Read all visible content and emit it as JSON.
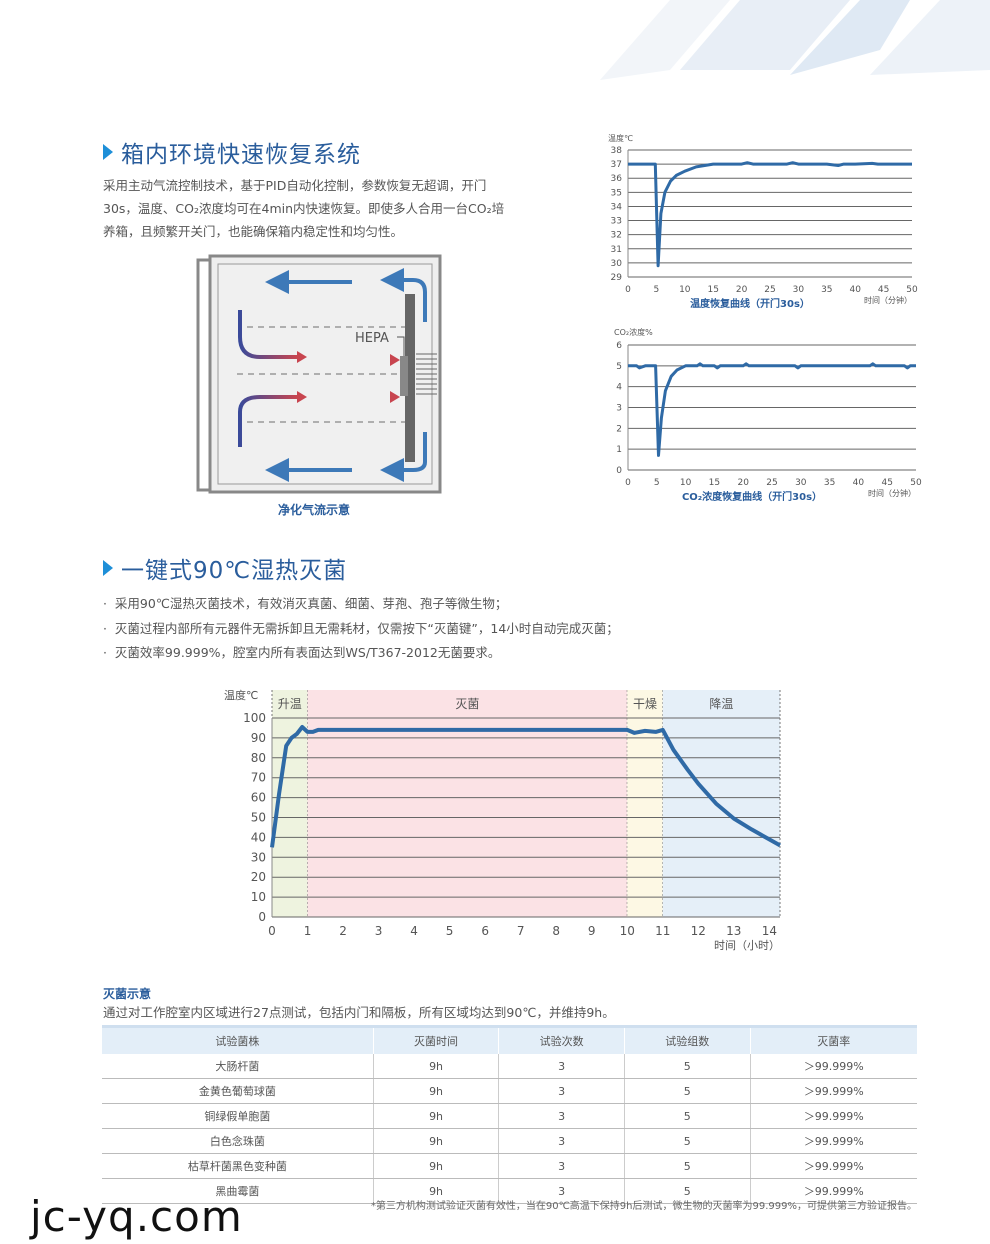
{
  "section1": {
    "title": "箱内环境快速恢复系统",
    "paragraph": [
      "采用主动气流控制技术，基于PID自动化控制，参数恢复无超调，开门",
      "30s，温度、CO₂浓度均可在4min内快速恢复。即使多人合用一台CO₂培",
      "养箱，且频繁开关门，也能确保箱内稳定性和均匀性。"
    ],
    "diagram": {
      "hepa_label": "HEPA",
      "caption": "净化气流示意"
    }
  },
  "section2": {
    "title": "一键式90℃湿热灭菌",
    "bullets": [
      "采用90℃湿热灭菌技术，有效消灭真菌、细菌、芽孢、孢子等微生物；",
      "灭菌过程内部所有元器件无需拆卸且无需耗材，仅需按下“灭菌键”，14小时自动完成灭菌；",
      "灭菌效率99.999%，腔室内所有表面达到WS/T367-2012无菌要求。"
    ]
  },
  "sterilization": {
    "heading": "灭菌示意",
    "description": "通过对工作腔室内区域进行27点测试，包括内门和隔板，所有区域均达到90℃，并维持9h。",
    "table": {
      "headers": [
        "试验菌株",
        "灭菌时间",
        "试验次数",
        "试验组数",
        "灭菌率"
      ],
      "rows": [
        [
          "大肠杆菌",
          "9h",
          "3",
          "5",
          "＞99.999%"
        ],
        [
          "金黄色葡萄球菌",
          "9h",
          "3",
          "5",
          "＞99.999%"
        ],
        [
          "铜绿假单胞菌",
          "9h",
          "3",
          "5",
          "＞99.999%"
        ],
        [
          "白色念珠菌",
          "9h",
          "3",
          "5",
          "＞99.999%"
        ],
        [
          "枯草杆菌黑色变种菌",
          "9h",
          "3",
          "5",
          "＞99.999%"
        ],
        [
          "黑曲霉菌",
          "9h",
          "3",
          "5",
          "＞99.999%"
        ]
      ]
    },
    "footnote": "*第三方机构测试验证灭菌有效性，当在90℃高温下保持9h后测试，微生物的灭菌率为99.999%，可提供第三方验证报告。"
  },
  "watermark": "jc-yq.com",
  "colors": {
    "accent": "#2a5d9c",
    "line": "#2f6aa6",
    "chevron": "#1e8fd8"
  },
  "chart_data": [
    {
      "type": "line",
      "title": "温度恢复曲线（开门30s）",
      "ylabel": "温度℃",
      "xlabel": "时间（分钟）",
      "xlim": [
        0,
        50
      ],
      "ylim": [
        29,
        38
      ],
      "xticks": [
        0,
        5,
        10,
        15,
        20,
        25,
        30,
        35,
        40,
        45,
        50
      ],
      "yticks": [
        29,
        30,
        31,
        32,
        33,
        34,
        35,
        36,
        37,
        38
      ],
      "grid": true,
      "x": [
        0,
        4.8,
        5.3,
        5.8,
        6.5,
        7.5,
        8.5,
        10,
        12,
        15,
        20,
        21,
        22,
        28,
        29,
        30,
        35,
        37,
        38,
        40,
        43,
        44,
        45,
        50
      ],
      "y": [
        37,
        37,
        29.8,
        33.5,
        35,
        35.8,
        36.2,
        36.5,
        36.8,
        37,
        37,
        37.1,
        37,
        37,
        37.1,
        37,
        37,
        36.9,
        37,
        37,
        37.05,
        37,
        37,
        37
      ]
    },
    {
      "type": "line",
      "title": "CO₂浓度恢复曲线（开门30s）",
      "ylabel": "CO₂浓度%",
      "xlabel": "时间（分钟）",
      "xlim": [
        0,
        50
      ],
      "ylim": [
        0,
        6
      ],
      "xticks": [
        0,
        5,
        10,
        15,
        20,
        25,
        30,
        35,
        40,
        45,
        50
      ],
      "yticks": [
        0,
        1,
        2,
        3,
        4,
        5,
        6
      ],
      "grid": true,
      "x": [
        0,
        1.5,
        2,
        3,
        4.8,
        5.3,
        5.8,
        6.5,
        7.5,
        8.5,
        10,
        12,
        12.5,
        13,
        15,
        15.5,
        16,
        20,
        20.5,
        21,
        29,
        29.5,
        30,
        42,
        42.5,
        43,
        48,
        48.5,
        49,
        50
      ],
      "y": [
        5,
        5,
        4.9,
        5,
        5,
        0.7,
        2.5,
        3.8,
        4.5,
        4.8,
        5,
        5,
        5.1,
        5,
        5,
        4.9,
        5,
        5,
        5.1,
        5,
        5,
        4.9,
        5,
        5,
        5.1,
        5,
        5,
        4.9,
        5,
        5
      ]
    },
    {
      "type": "line",
      "ylabel": "温度℃",
      "xlabel": "时间（小时）",
      "xlim": [
        0,
        14.3
      ],
      "ylim": [
        0,
        100
      ],
      "xticks": [
        0,
        1,
        2,
        3,
        4,
        5,
        6,
        7,
        8,
        9,
        10,
        11,
        12,
        13,
        14
      ],
      "yticks": [
        0,
        10,
        20,
        30,
        40,
        50,
        60,
        70,
        80,
        90,
        100
      ],
      "grid": true,
      "phases": [
        {
          "label": "升温",
          "from": 0,
          "to": 1,
          "color": "#eef3df"
        },
        {
          "label": "灭菌",
          "from": 1,
          "to": 10,
          "color": "#fbe2e5"
        },
        {
          "label": "干燥",
          "from": 10,
          "to": 11,
          "color": "#fdf8e4"
        },
        {
          "label": "降温",
          "from": 11,
          "to": 14.3,
          "color": "#e5eff8"
        }
      ],
      "x": [
        0,
        0.2,
        0.4,
        0.55,
        0.7,
        0.85,
        1,
        1.15,
        1.3,
        10,
        10.2,
        10.5,
        10.8,
        11,
        11.3,
        11.7,
        12,
        12.5,
        13,
        13.5,
        14,
        14.3
      ],
      "y": [
        35,
        62,
        86,
        90,
        92,
        95.5,
        93,
        93,
        94,
        94,
        92.5,
        93.5,
        93,
        94,
        84,
        74,
        67,
        57,
        49.5,
        44,
        39,
        36
      ]
    }
  ]
}
